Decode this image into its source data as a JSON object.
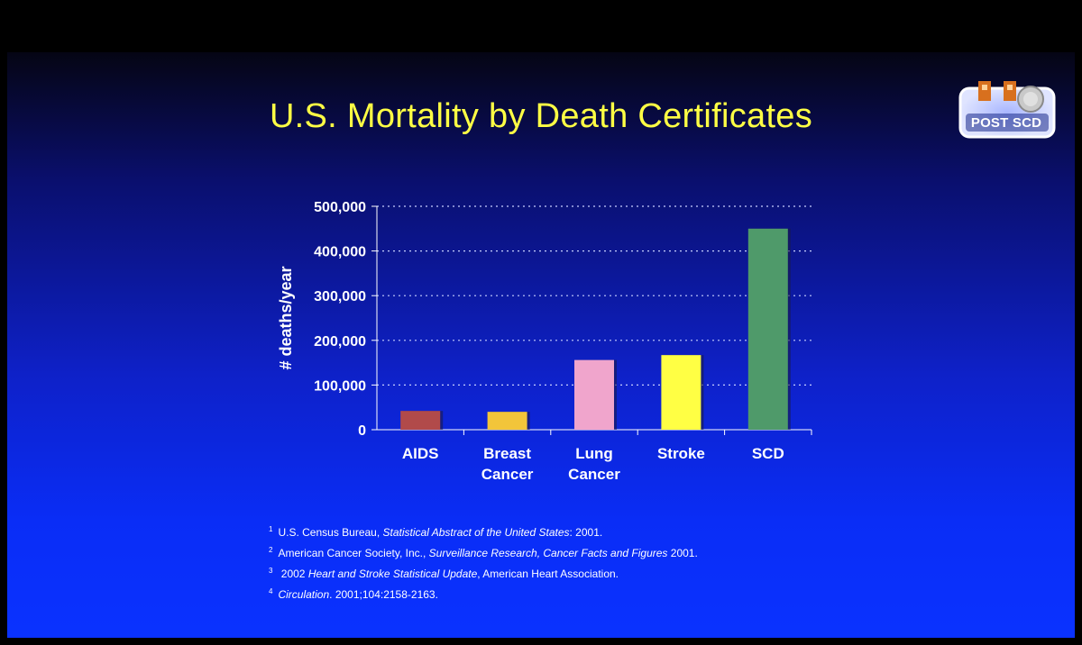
{
  "slide": {
    "title": "U.S. Mortality by Death Certificates",
    "logo_text": "POST SCD",
    "background_top": "#050514",
    "background_bottom": "#0a32ff",
    "title_color": "#ffff44"
  },
  "chart_data": {
    "type": "bar",
    "title": "",
    "xlabel": "",
    "ylabel": "# deaths/year",
    "categories": [
      "AIDS",
      "Breast Cancer",
      "Lung Cancer",
      "Stroke",
      "SCD"
    ],
    "category_lines": [
      [
        "AIDS"
      ],
      [
        "Breast",
        "Cancer"
      ],
      [
        "Lung",
        "Cancer"
      ],
      [
        "Stroke"
      ],
      [
        "SCD"
      ]
    ],
    "values": [
      42000,
      40000,
      156000,
      167000,
      450000
    ],
    "colors": [
      "#b14a4a",
      "#f2c53a",
      "#f0a5cc",
      "#ffff44",
      "#4f9a6a"
    ],
    "ylim": [
      0,
      500000
    ],
    "yticks": [
      0,
      100000,
      200000,
      300000,
      400000,
      500000
    ],
    "ytick_labels": [
      "0",
      "100,000",
      "200,000",
      "300,000",
      "400,000",
      "500,000"
    ],
    "grid": "dotted horizontal",
    "legend": "none"
  },
  "footnotes": [
    {
      "num": "1",
      "parts": [
        {
          "text": "U.S. Census Bureau, ",
          "italic": false
        },
        {
          "text": "Statistical Abstract of the United States",
          "italic": true
        },
        {
          "text": ": 2001.",
          "italic": false
        }
      ]
    },
    {
      "num": "2",
      "parts": [
        {
          "text": "American Cancer Society, Inc., ",
          "italic": false
        },
        {
          "text": "Surveillance Research, Cancer Facts and Figures",
          "italic": true
        },
        {
          "text": " 2001.",
          "italic": false
        }
      ]
    },
    {
      "num": "3",
      "parts": [
        {
          "text": " 2002 ",
          "italic": false
        },
        {
          "text": "Heart and Stroke Statistical Update",
          "italic": true
        },
        {
          "text": ", American Heart Association.",
          "italic": false
        }
      ]
    },
    {
      "num": "4",
      "parts": [
        {
          "text": "Circulation",
          "italic": true
        },
        {
          "text": ". 2001;104:2158-2163.",
          "italic": false
        }
      ]
    }
  ]
}
